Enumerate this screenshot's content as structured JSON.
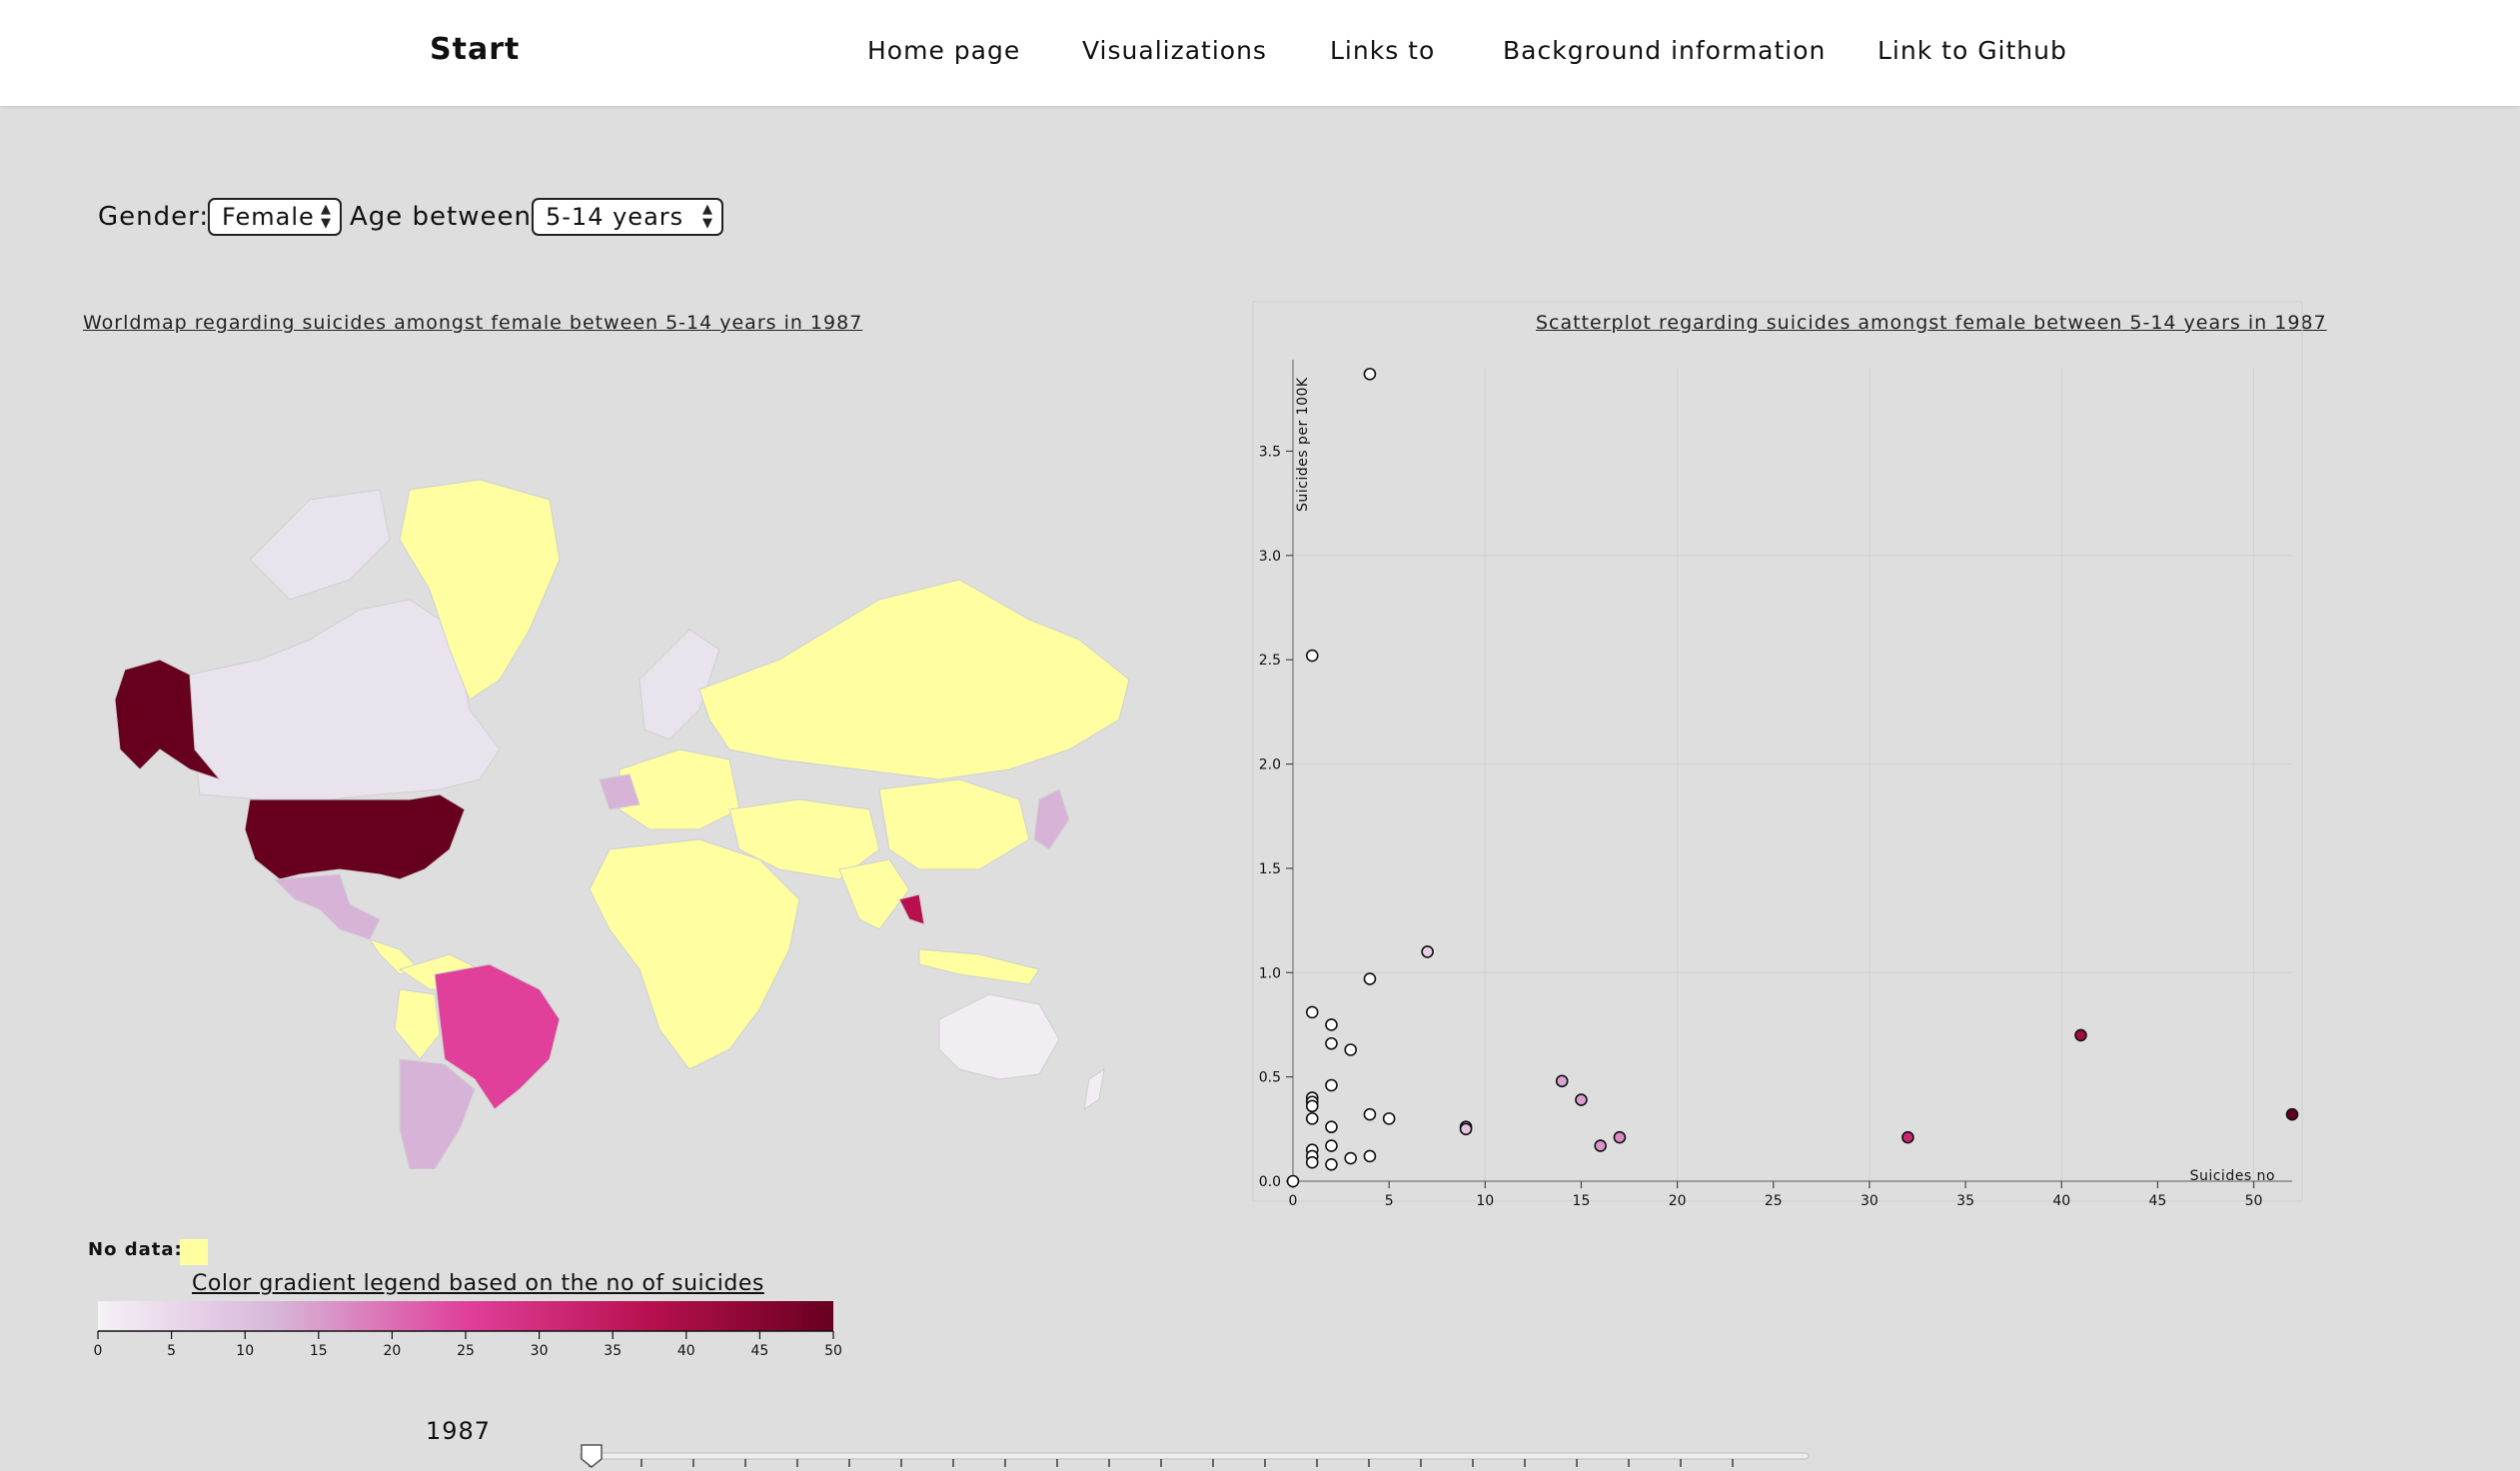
{
  "nav": {
    "brand": "Start",
    "links": [
      "Home page",
      "Visualizations",
      "Links to",
      "Background information",
      "Link to Github"
    ]
  },
  "controls": {
    "gender_label": "Gender:",
    "gender_value": "Female",
    "age_label": "Age between:",
    "age_value": "5-14 years"
  },
  "map": {
    "title": "Worldmap regarding suicides amongst female between 5-14 years in 1987",
    "nodata_label": "No data:",
    "nodata_color": "#ffffa2",
    "legend_title": "Color gradient legend based on the no of suicides",
    "legend_ticks": [
      "0",
      "5",
      "10",
      "15",
      "20",
      "25",
      "30",
      "35",
      "40",
      "45",
      "50"
    ],
    "gradient_colors": [
      "#f6f1f7",
      "#d7b3d8",
      "#e0409a",
      "#b8104f",
      "#67001f"
    ]
  },
  "scatter": {
    "title": "Scatterplot regarding suicides amongst female between 5-14 years in 1987"
  },
  "chart_data": {
    "type": "scatter",
    "title": "Scatterplot regarding suicides amongst female between 5-14 years in 1987",
    "xlabel": "Suicides no",
    "ylabel": "Suicides per 100K",
    "xlim": [
      0,
      52
    ],
    "ylim": [
      0,
      3.9
    ],
    "xticks": [
      0,
      5,
      10,
      15,
      20,
      25,
      30,
      35,
      40,
      45,
      50
    ],
    "yticks": [
      0,
      0.5,
      1.0,
      1.5,
      2.0,
      2.5,
      3.0,
      3.5
    ],
    "grid": true,
    "points": [
      {
        "x": 4,
        "y": 3.87
      },
      {
        "x": 1,
        "y": 2.52
      },
      {
        "x": 7,
        "y": 1.1
      },
      {
        "x": 4,
        "y": 0.97
      },
      {
        "x": 1,
        "y": 0.81
      },
      {
        "x": 2,
        "y": 0.75
      },
      {
        "x": 2,
        "y": 0.66
      },
      {
        "x": 3,
        "y": 0.63
      },
      {
        "x": 14,
        "y": 0.48
      },
      {
        "x": 2,
        "y": 0.46
      },
      {
        "x": 1,
        "y": 0.4
      },
      {
        "x": 1,
        "y": 0.38
      },
      {
        "x": 15,
        "y": 0.39
      },
      {
        "x": 1,
        "y": 0.36
      },
      {
        "x": 4,
        "y": 0.32
      },
      {
        "x": 5,
        "y": 0.3
      },
      {
        "x": 1,
        "y": 0.3
      },
      {
        "x": 2,
        "y": 0.26
      },
      {
        "x": 9,
        "y": 0.26
      },
      {
        "x": 9,
        "y": 0.25
      },
      {
        "x": 17,
        "y": 0.21
      },
      {
        "x": 32,
        "y": 0.21
      },
      {
        "x": 16,
        "y": 0.17
      },
      {
        "x": 2,
        "y": 0.17
      },
      {
        "x": 1,
        "y": 0.15
      },
      {
        "x": 1,
        "y": 0.12
      },
      {
        "x": 4,
        "y": 0.12
      },
      {
        "x": 3,
        "y": 0.11
      },
      {
        "x": 1,
        "y": 0.09
      },
      {
        "x": 2,
        "y": 0.08
      },
      {
        "x": 0,
        "y": 0.0
      },
      {
        "x": 41,
        "y": 0.7
      },
      {
        "x": 52,
        "y": 0.32
      }
    ]
  },
  "slider": {
    "year": "1987",
    "value": 0
  }
}
